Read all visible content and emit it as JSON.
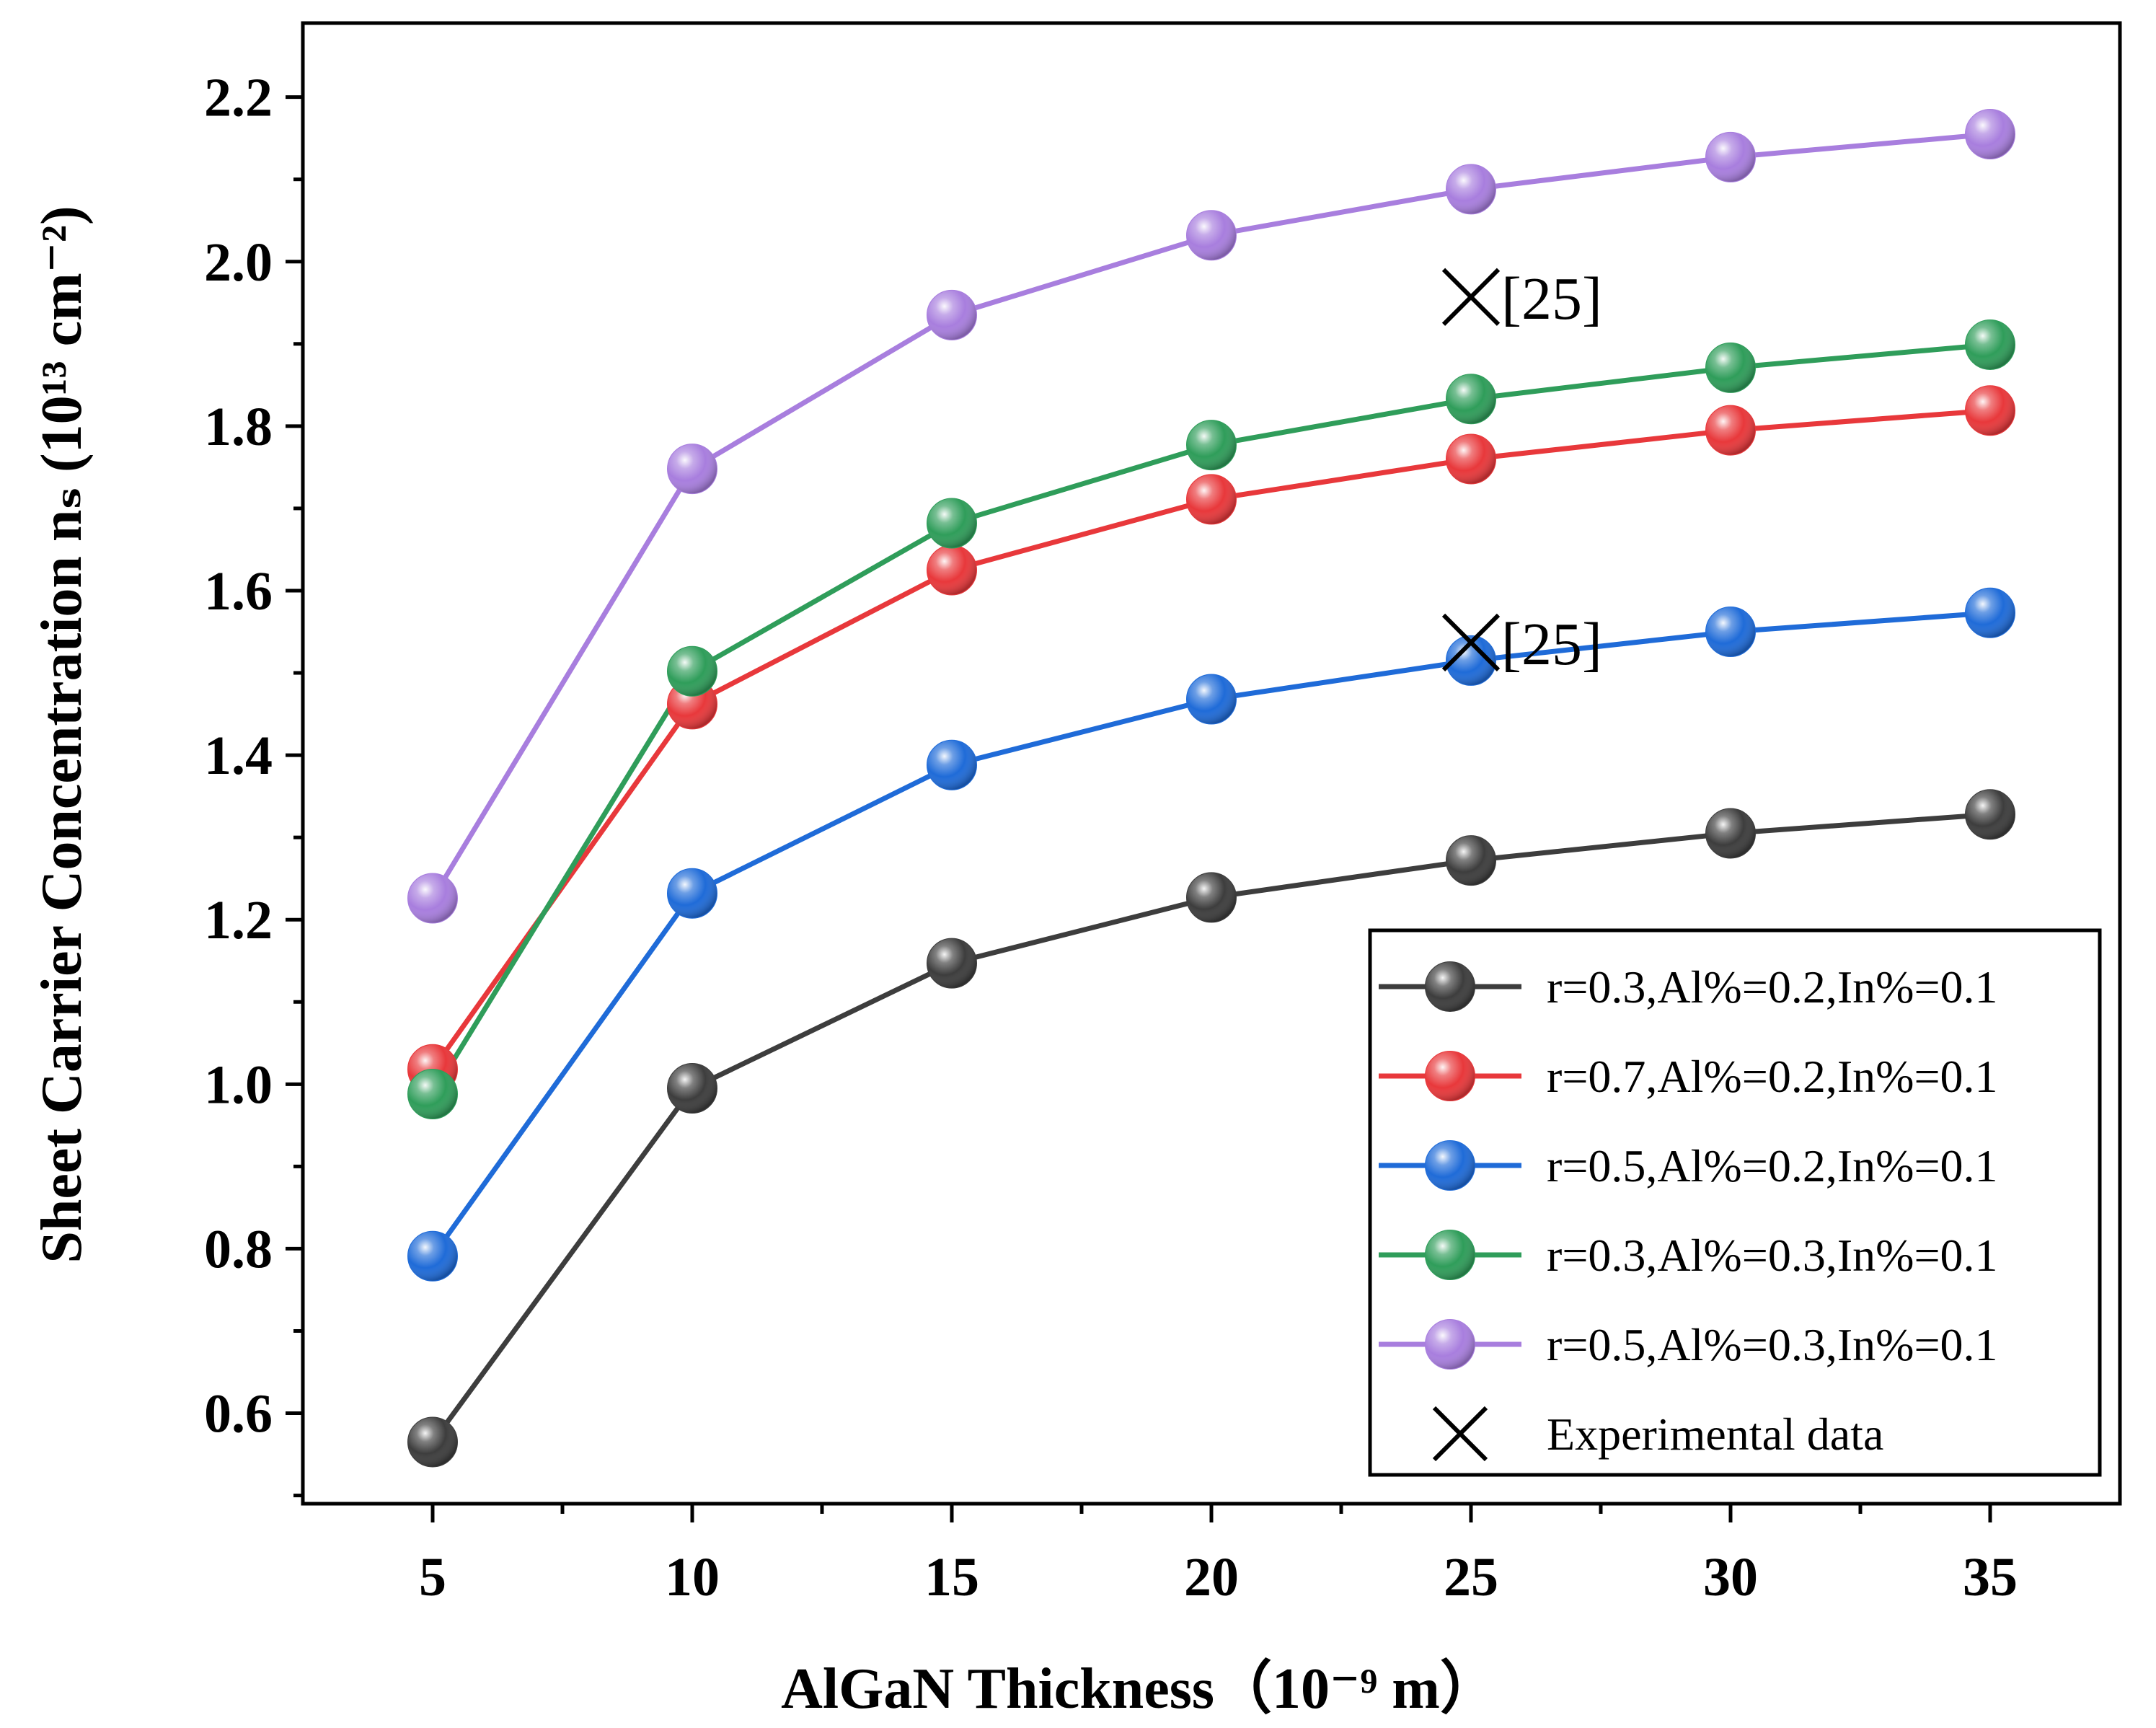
{
  "chart_data": {
    "type": "line",
    "title": "",
    "xlabel": "AlGaN Thickness（10⁻⁹ m）",
    "ylabel": "Sheet Carrier Concentration nₛ (10¹³ cm⁻²)",
    "x": [
      5,
      10,
      15,
      20,
      25,
      30,
      35
    ],
    "xlim": [
      2.5,
      37.5
    ],
    "ylim": [
      0.49,
      2.29
    ],
    "xticks": [
      "5",
      "10",
      "15",
      "20",
      "25",
      "30",
      "35"
    ],
    "yticks": [
      "0.6",
      "0.8",
      "1.0",
      "1.2",
      "1.4",
      "1.6",
      "1.8",
      "2.0",
      "2.2"
    ],
    "series": [
      {
        "name": "r=0.3,Al%=0.2,In%=0.1",
        "color": "#3d3d3d",
        "values": [
          0.565,
          0.995,
          1.147,
          1.227,
          1.272,
          1.305,
          1.328
        ]
      },
      {
        "name": "r=0.7,Al%=0.2,In%=0.1",
        "color": "#e8383b",
        "values": [
          1.018,
          1.462,
          1.625,
          1.711,
          1.76,
          1.795,
          1.819
        ]
      },
      {
        "name": "r=0.5,Al%=0.2,In%=0.1",
        "color": "#1f6bd8",
        "values": [
          0.791,
          1.232,
          1.388,
          1.468,
          1.515,
          1.55,
          1.573
        ]
      },
      {
        "name": "r=0.3,Al%=0.3,In%=0.1",
        "color": "#2f9d5a",
        "values": [
          0.988,
          1.502,
          1.682,
          1.777,
          1.833,
          1.871,
          1.899
        ]
      },
      {
        "name": "r=0.5,Al%=0.3,In%=0.1",
        "color": "#a87ede",
        "values": [
          1.226,
          1.748,
          1.935,
          2.032,
          2.088,
          2.127,
          2.155
        ]
      }
    ],
    "experimental": {
      "name": "Experimental data",
      "points": [
        {
          "x": 25,
          "y": 1.957,
          "label": "[25]"
        },
        {
          "x": 25,
          "y": 1.537,
          "label": "[25]"
        }
      ]
    },
    "legend_position": "bottom-right",
    "grid": false
  }
}
